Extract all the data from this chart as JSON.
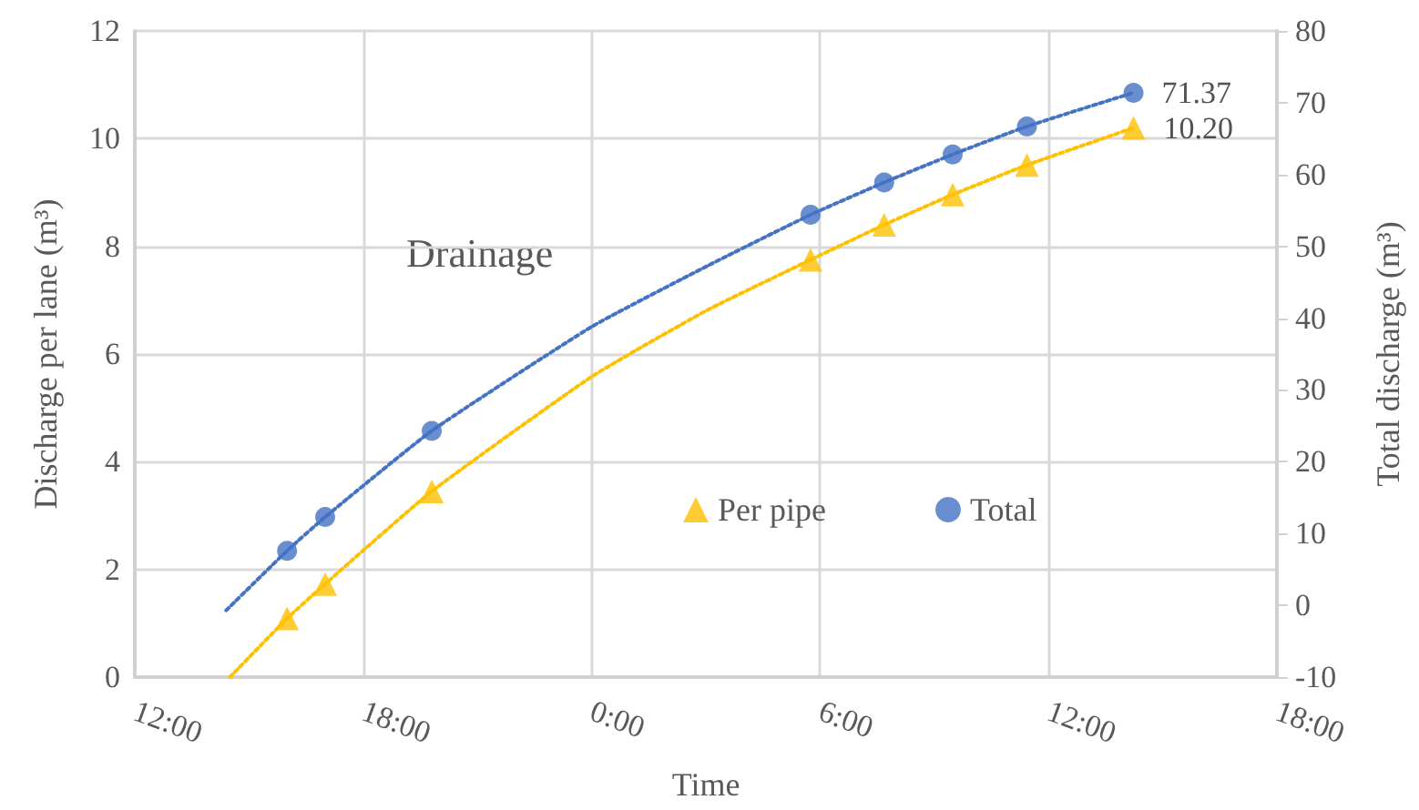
{
  "chart_data": {
    "type": "scatter",
    "xlabel": "Time",
    "ylabel": "Discharge per lane (m³)",
    "y2label": "Total discharge (m³)",
    "annotations": [
      "Drainage"
    ],
    "xlim": [
      "--01-01T12:00",
      "--01-02T18:00"
    ],
    "xticks": [
      {
        "value": "--01-01T12:00",
        "label": "12:00"
      },
      {
        "value": "--01-01T18:00",
        "label": "18:00"
      },
      {
        "value": "--01-02T00:00",
        "label": "0:00"
      },
      {
        "value": "--01-02T06:00",
        "label": "6:00"
      },
      {
        "value": "--01-02T12:00",
        "label": "12:00"
      },
      {
        "value": "--01-02T18:00",
        "label": "18:00"
      }
    ],
    "ylim": [
      0,
      12
    ],
    "yticks": [
      0,
      2,
      4,
      6,
      8,
      10,
      12
    ],
    "y2lim": [
      -10,
      80
    ],
    "y2ticks": [
      -10,
      0,
      10,
      20,
      30,
      40,
      50,
      60,
      70,
      80
    ],
    "grid": true,
    "legend": "center",
    "series": [
      {
        "name": "Per pipe",
        "marker": "triangle",
        "color": "#ffc000",
        "x": [
          "--01-01T16:00",
          "--01-01T17:00",
          "--01-01T19:48",
          "--01-02T05:45",
          "--01-02T07:41",
          "--01-02T09:29",
          "--01-02T11:26",
          "--01-02T14:14"
        ],
        "values": [
          1.09,
          1.73,
          3.45,
          7.75,
          8.4,
          8.96,
          9.51,
          10.2
        ],
        "value_labels": [
          null,
          null,
          null,
          null,
          null,
          null,
          null,
          "10.20"
        ]
      },
      {
        "name": "Total",
        "marker": "circle",
        "axis": "y2",
        "color": "#4472c4",
        "x": [
          "--01-01T16:00",
          "--01-01T17:00",
          "--01-01T19:48",
          "--01-02T05:45",
          "--01-02T07:41",
          "--01-02T09:29",
          "--01-02T11:26",
          "--01-02T14:14"
        ],
        "values": [
          7.6,
          12.3,
          24.3,
          54.4,
          58.9,
          62.8,
          66.7,
          71.37
        ],
        "value_labels": [
          null,
          null,
          null,
          null,
          null,
          null,
          null,
          "71.37"
        ]
      },
      {
        "type": "line",
        "marker": "none",
        "line_style": "dotted",
        "color": "#ffc000",
        "x": [
          "--01-01T14:30",
          "--01-01T16:00",
          "--01-01T17:00",
          "--01-01T19:48",
          "--01-02T00:00",
          "--01-02T03:03",
          "--01-02T05:45",
          "--01-02T07:41",
          "--01-02T09:29",
          "--01-02T11:26",
          "--01-02T14:14"
        ],
        "values": [
          0,
          1.09,
          1.73,
          3.45,
          5.58,
          6.82,
          7.75,
          8.4,
          8.96,
          9.51,
          10.2
        ]
      },
      {
        "type": "line",
        "marker": "none",
        "line_style": "dotted",
        "axis": "y2",
        "color": "#4472c4",
        "x": [
          "--01-01T14:24",
          "--01-01T16:00",
          "--01-01T17:00",
          "--01-01T19:48",
          "--01-02T00:00",
          "--01-02T03:03",
          "--01-02T05:45",
          "--01-02T07:41",
          "--01-02T09:29",
          "--01-02T11:26",
          "--01-02T14:14"
        ],
        "values": [
          -0.7,
          7.6,
          12.3,
          24.3,
          38.8,
          47.3,
          54.4,
          58.9,
          62.8,
          66.7,
          71.4
        ]
      }
    ]
  }
}
